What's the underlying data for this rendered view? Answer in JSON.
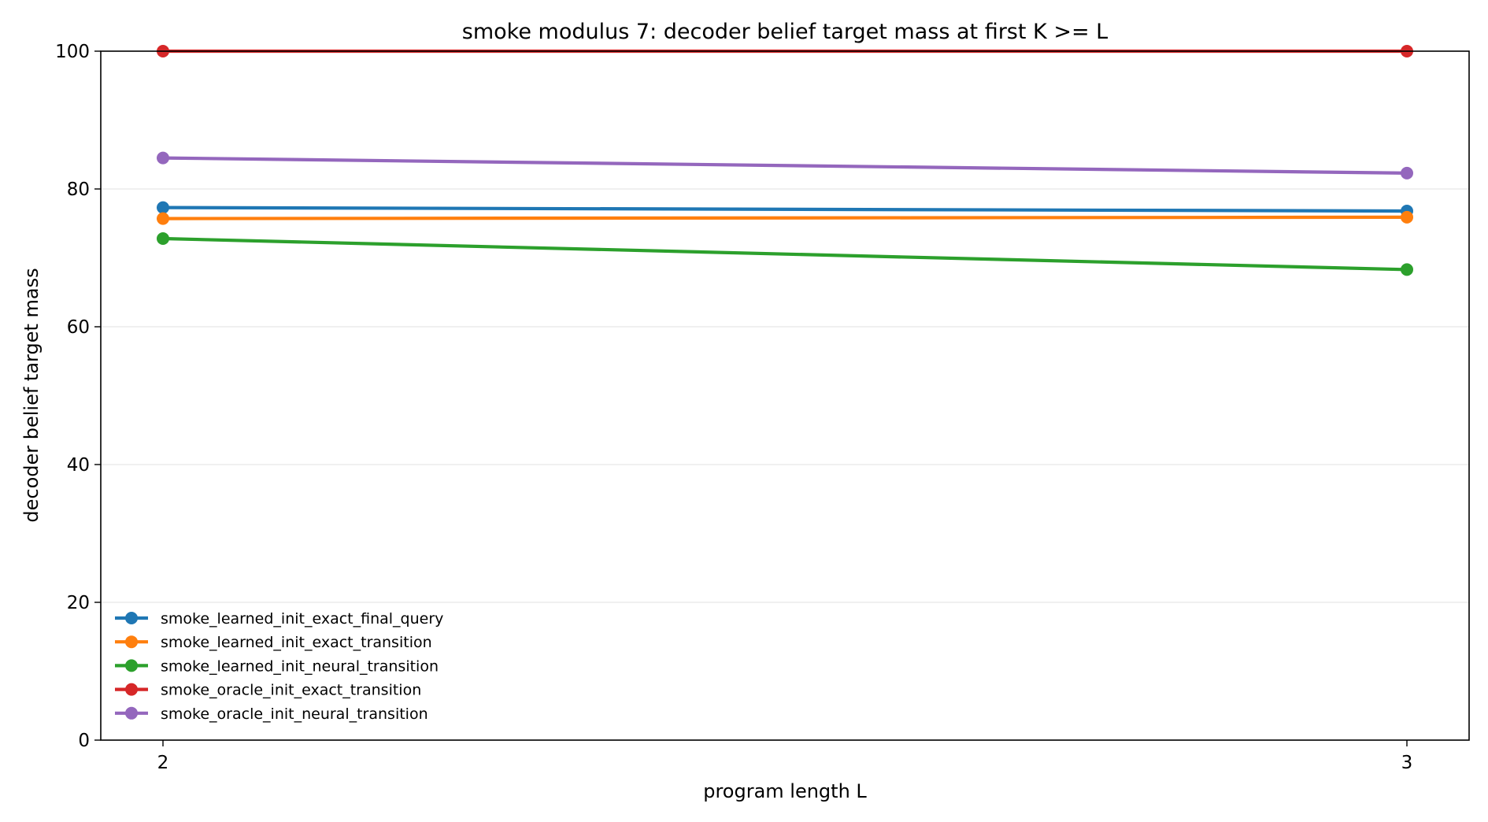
{
  "chart_data": {
    "type": "line",
    "title": "smoke modulus 7: decoder belief target mass at first K >= L",
    "xlabel": "program length L",
    "ylabel": "decoder belief target mass",
    "x": [
      2,
      3
    ],
    "xticks": [
      "2",
      "3"
    ],
    "xlim": [
      1.95,
      3.05
    ],
    "ylim": [
      0,
      100
    ],
    "yticks": [
      "0",
      "20",
      "40",
      "60",
      "80",
      "100"
    ],
    "grid": "horizontal",
    "legend_position": "lower-left",
    "series": [
      {
        "name": "smoke_learned_init_exact_final_query",
        "color": "#1f77b4",
        "values": [
          77.3,
          76.8
        ]
      },
      {
        "name": "smoke_learned_init_exact_transition",
        "color": "#ff7f0e",
        "values": [
          75.7,
          75.9
        ]
      },
      {
        "name": "smoke_learned_init_neural_transition",
        "color": "#2ca02c",
        "values": [
          72.8,
          68.3
        ]
      },
      {
        "name": "smoke_oracle_init_exact_transition",
        "color": "#d62728",
        "values": [
          100.0,
          100.0
        ]
      },
      {
        "name": "smoke_oracle_init_neural_transition",
        "color": "#9467bd",
        "values": [
          84.5,
          82.3
        ]
      }
    ]
  }
}
